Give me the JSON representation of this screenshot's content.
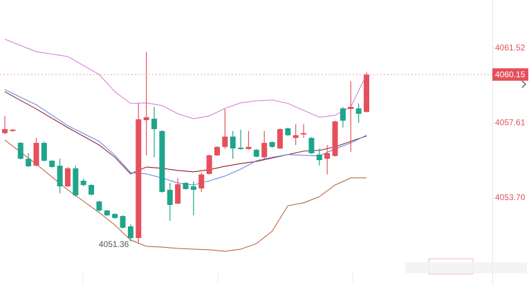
{
  "chart_data": {
    "type": "candlestick",
    "up_color": "#e5505c",
    "down_color": "#1ea58c",
    "ylim": [
      4049.16,
      4064.04
    ],
    "yticks": [
      {
        "value": 4053.7,
        "label": "4053.70"
      },
      4057.61,
      4061.52
    ],
    "grid": false,
    "open": [
      4057.09,
      4057.2,
      4056.58,
      4055.75,
      4055.39,
      4056.58,
      4055.65,
      4055.39,
      4054.31,
      4055.25,
      4054.6,
      4054.38,
      4053.52,
      4053.05,
      4052.87,
      4052.76,
      4052.22,
      4051.61,
      4057.77,
      4057.84,
      4057.2,
      4054.13,
      4053.41,
      4054.49,
      4054.31,
      4054.2,
      4054.96,
      4055.93,
      4056.37,
      4056.91,
      4056.33,
      4056.26,
      4056.22,
      4055.83,
      4056.62,
      4056.29,
      4057.34,
      4056.84,
      4057.02,
      4056.84,
      4055.97,
      4055.75,
      4055.9,
      4058.38,
      4058.35,
      4058.38,
      4058.2
    ],
    "high": [
      4057.99,
      4057.3,
      4056.62,
      4056.04,
      4056.84,
      4056.65,
      4055.68,
      4055.75,
      4055.32,
      4055.39,
      4054.7,
      4054.42,
      4053.56,
      4053.09,
      4052.9,
      4052.8,
      4052.33,
      4058.64,
      4061.34,
      4058.46,
      4057.24,
      4054.49,
      4054.75,
      4054.53,
      4054.57,
      4055.03,
      4055.97,
      4056.4,
      4058.35,
      4057.2,
      4057.27,
      4057.2,
      4056.26,
      4057.2,
      4056.66,
      4057.34,
      4057.38,
      4057.56,
      4057.56,
      4056.88,
      4056.29,
      4056.47,
      4057.74,
      4058.46,
      4059.79,
      4058.64,
      4060.26
    ],
    "low": [
      4057.02,
      4057.16,
      4055.72,
      4055.32,
      4055.36,
      4055.6,
      4055.28,
      4053.95,
      4054.27,
      4053.77,
      4054.31,
      4053.84,
      4053.0,
      4052.76,
      4052.62,
      4052.11,
      4051.45,
      4051.36,
      4055.93,
      4055.83,
      4053.98,
      4052.51,
      4053.38,
      4054.13,
      4052.8,
      4054.02,
      4054.93,
      4055.9,
      4056.29,
      4055.75,
      4056.22,
      4056.22,
      4055.83,
      4055.75,
      4056.33,
      4056.26,
      4056.94,
      4056.47,
      4056.84,
      4056.0,
      4055.39,
      4054.93,
      4055.86,
      4057.38,
      4056.11,
      4057.63,
      4058.16
    ],
    "close": [
      4057.3,
      4057.27,
      4055.75,
      4055.36,
      4056.58,
      4055.65,
      4055.32,
      4054.31,
      4055.25,
      4053.84,
      4054.38,
      4053.88,
      4053.05,
      4052.8,
      4052.66,
      4052.15,
      4051.61,
      4057.81,
      4057.92,
      4057.3,
      4054.02,
      4053.34,
      4054.42,
      4054.17,
      4054.13,
      4054.93,
      4055.93,
      4056.37,
      4056.91,
      4056.29,
      4056.26,
      4056.37,
      4055.86,
      4056.58,
      4056.37,
      4057.3,
      4056.98,
      4056.98,
      4057.09,
      4056.04,
      4055.68,
      4056.04,
      4057.7,
      4057.74,
      4058.46,
      4058.1,
      4060.15
    ],
    "bands": [
      {
        "color": "#d77fd6",
        "x": [
          0,
          4,
          8,
          12,
          14,
          16,
          18,
          20,
          22,
          24,
          26,
          28,
          30,
          32,
          34,
          36,
          38,
          40,
          42,
          44,
          46
        ],
        "values": [
          4061.99,
          4061.34,
          4061.09,
          4060.15,
          4059.25,
          4058.64,
          4058.67,
          4058.53,
          4058.1,
          4057.84,
          4057.99,
          4058.38,
          4058.67,
          4058.78,
          4058.82,
          4058.64,
          4058.28,
          4057.92,
          4058.02,
          4058.46,
          4060.15
        ]
      },
      {
        "color": "#8a1d2c",
        "x": [
          0,
          4,
          8,
          12,
          14,
          16,
          18,
          20,
          22,
          24,
          26,
          28,
          30,
          32,
          34,
          36,
          38,
          40,
          42,
          44,
          46
        ],
        "values": [
          4059.25,
          4058.35,
          4057.38,
          4056.47,
          4055.83,
          4054.96,
          4055.32,
          4055.25,
          4055.14,
          4055.07,
          4055.18,
          4055.36,
          4055.5,
          4055.61,
          4055.79,
          4055.97,
          4056.15,
          4056.19,
          4056.37,
          4056.66,
          4056.94
        ]
      },
      {
        "color": "#6a86e0",
        "x": [
          0,
          4,
          8,
          12,
          14,
          16,
          18,
          20,
          22,
          24,
          26,
          28,
          30,
          32,
          34,
          36,
          38,
          40,
          42,
          44,
          46
        ],
        "values": [
          4059.36,
          4058.57,
          4057.48,
          4056.66,
          4055.93,
          4055.03,
          4054.96,
          4054.75,
          4054.49,
          4054.38,
          4054.6,
          4054.85,
          4055.21,
          4055.65,
          4055.83,
          4055.97,
          4055.93,
          4055.9,
          4056.26,
          4056.58,
          4056.98
        ]
      },
      {
        "color": "#b5683a",
        "x": [
          0,
          4,
          8,
          12,
          14,
          16,
          18,
          20,
          22,
          24,
          26,
          28,
          30,
          32,
          34,
          36,
          38,
          40,
          42,
          44,
          46
        ],
        "values": [
          4056.73,
          4055.47,
          4054.13,
          4052.94,
          4052.29,
          4051.5,
          4051.18,
          4051.14,
          4051.07,
          4051.03,
          4051.0,
          4050.92,
          4051.03,
          4051.32,
          4051.97,
          4053.3,
          4053.45,
          4053.77,
          4054.38,
          4054.75,
          4054.75
        ]
      }
    ]
  }
}
